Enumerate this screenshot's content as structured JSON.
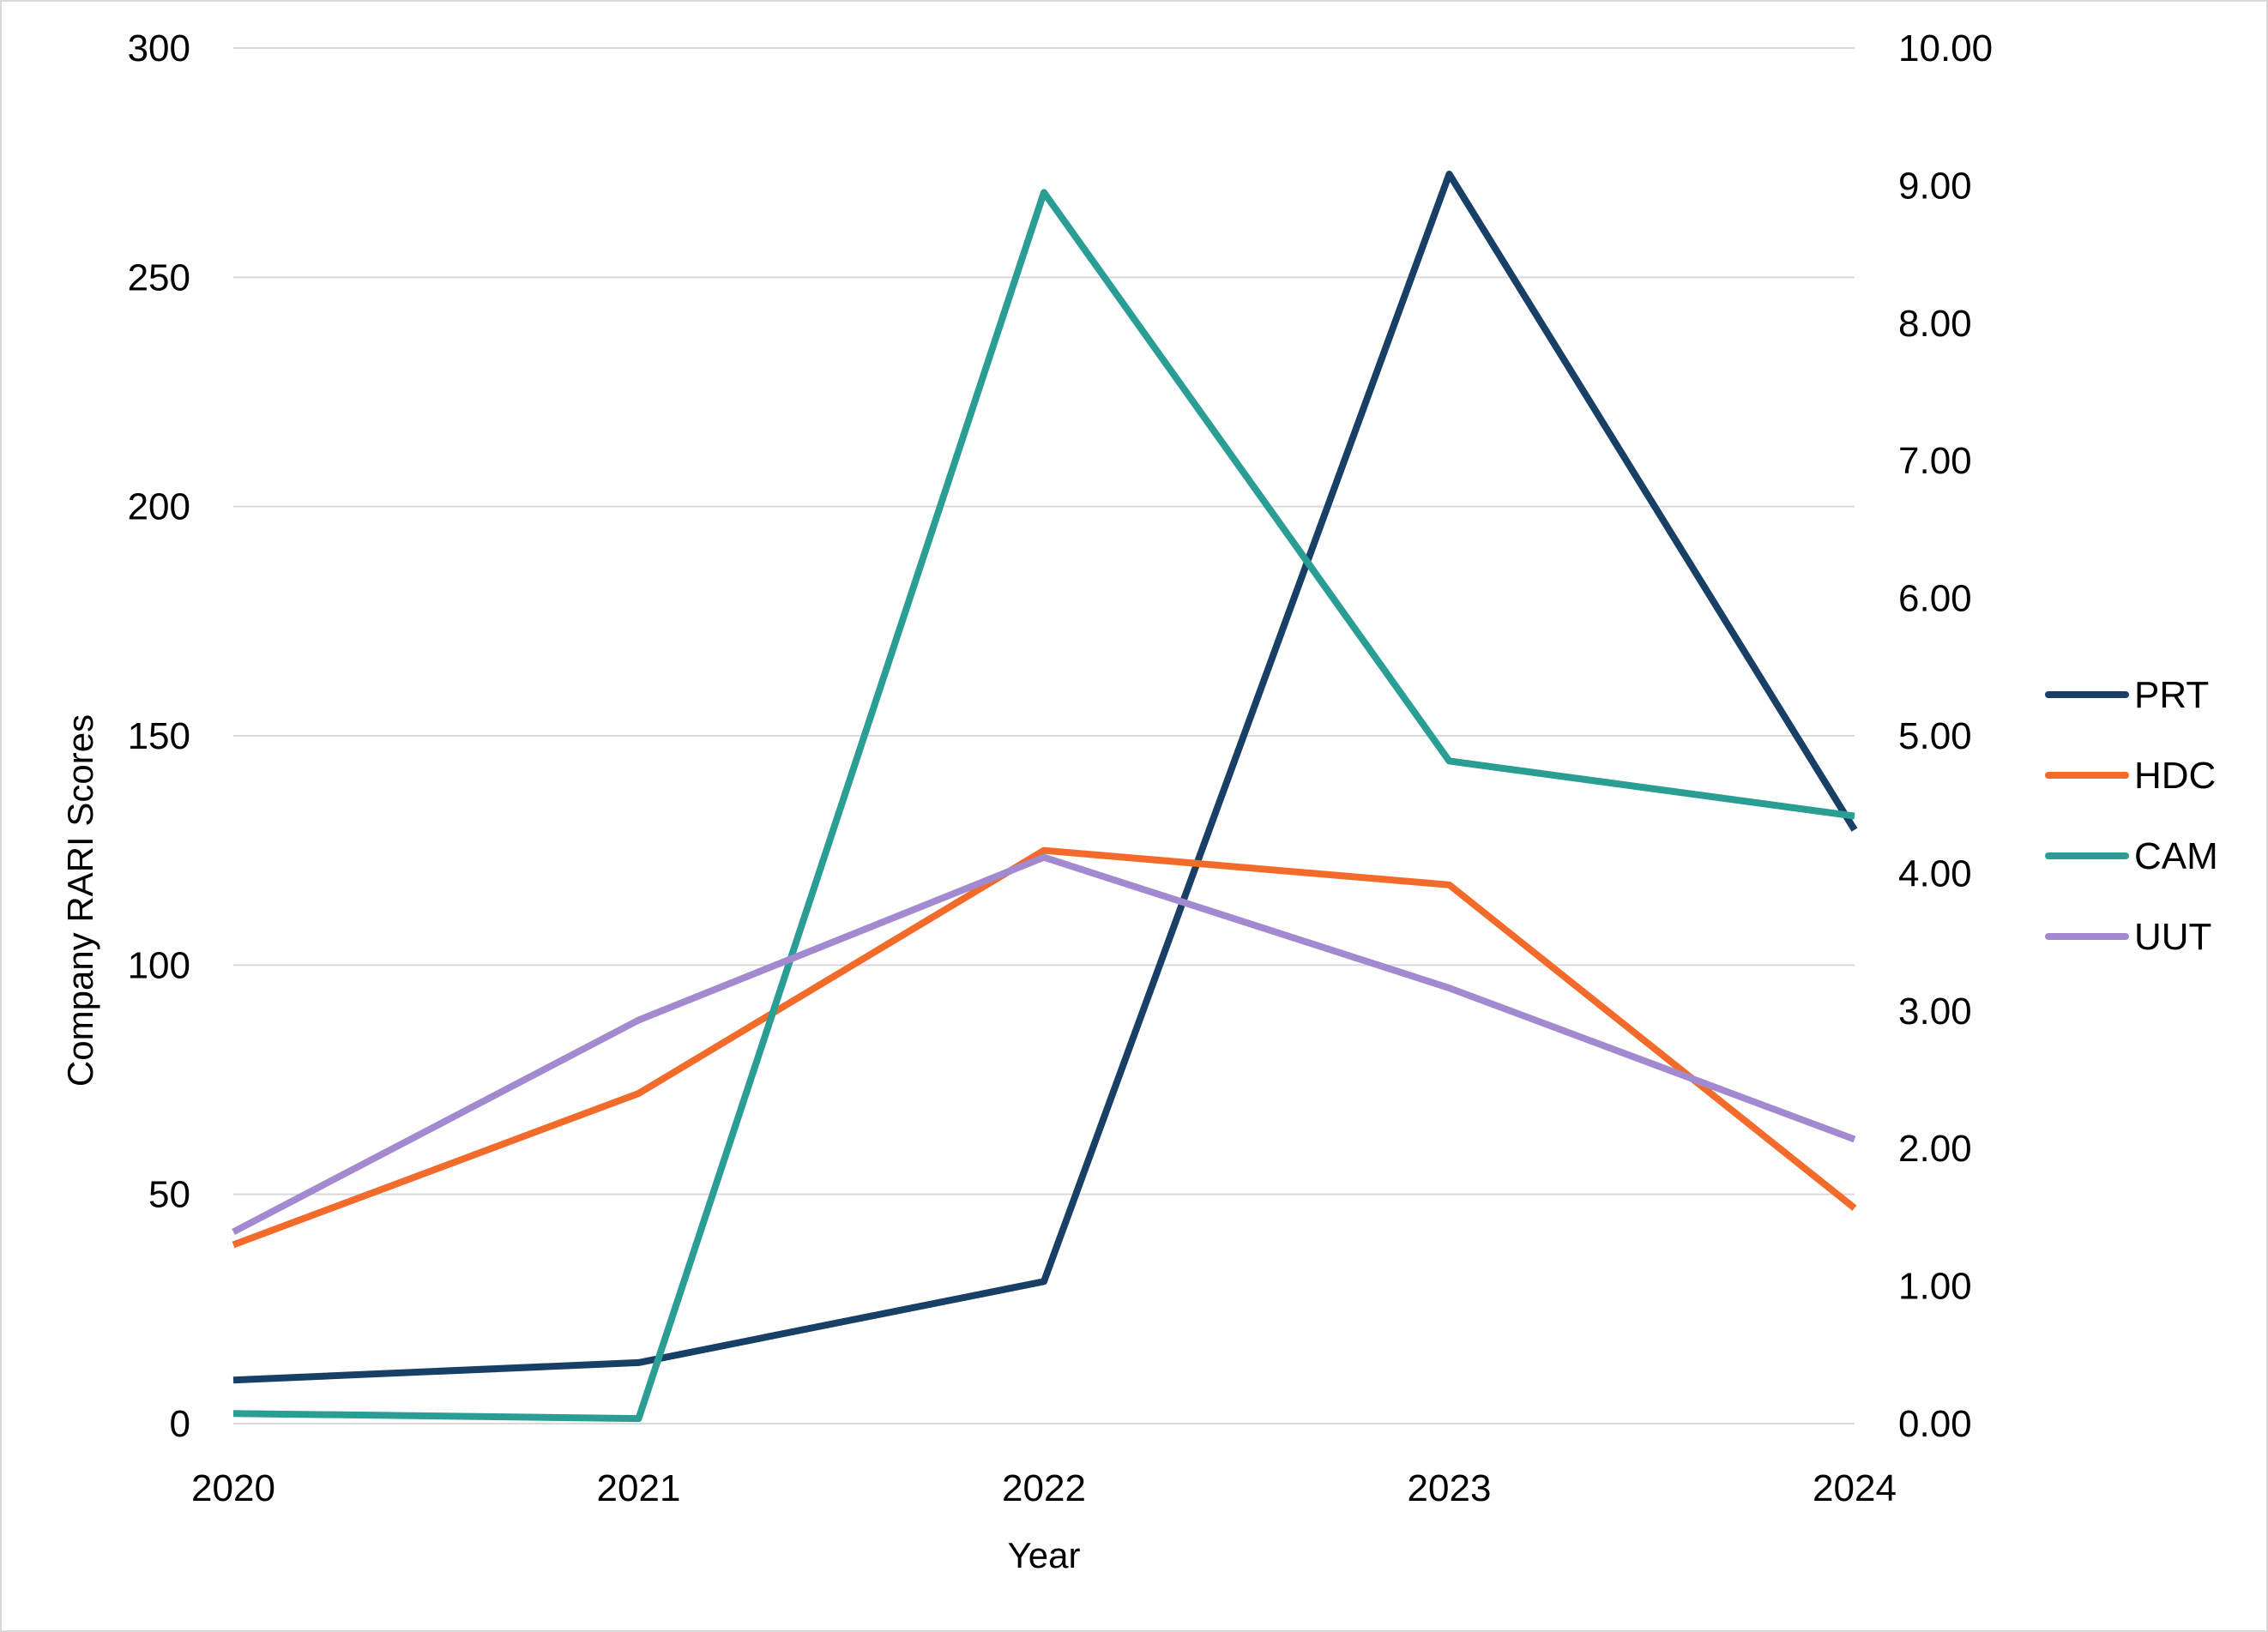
{
  "chart_data": {
    "type": "line",
    "xlabel": "Year",
    "ylabel": "Company RARI Scores",
    "x": [
      "2020",
      "2021",
      "2022",
      "2023",
      "2024"
    ],
    "ylim": [
      0,
      300
    ],
    "y_ticks": [
      "0",
      "50",
      "100",
      "150",
      "200",
      "250",
      "300"
    ],
    "y2lim": [
      0,
      10
    ],
    "y2_ticks": [
      "0.00",
      "1.00",
      "2.00",
      "3.00",
      "4.00",
      "5.00",
      "6.00",
      "7.00",
      "8.00",
      "9.00",
      "10.00"
    ],
    "grid": true,
    "legend_position": "right",
    "series": [
      {
        "name": "PRT",
        "color": "#183f66",
        "values": [
          9.5,
          13.3,
          31,
          272.5,
          129.5
        ]
      },
      {
        "name": "HDC",
        "color": "#f26b2a",
        "values": [
          39,
          72,
          125,
          117.5,
          47
        ]
      },
      {
        "name": "CAM",
        "color": "#2a9d95",
        "values": [
          2.2,
          1.1,
          268.5,
          144.5,
          132.5
        ]
      },
      {
        "name": "UUT",
        "color": "#a38ad0",
        "values": [
          41.8,
          88,
          123.5,
          95,
          62
        ]
      }
    ]
  }
}
